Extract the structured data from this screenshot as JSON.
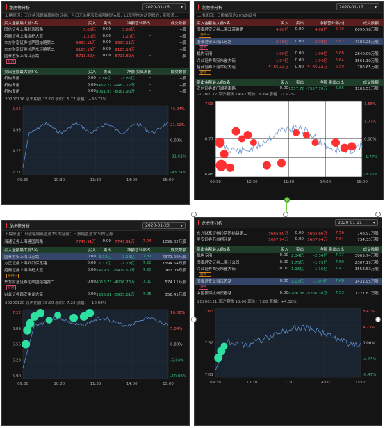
{
  "panels": [
    {
      "title": "龙虎榜分析",
      "date": "2020-01-16",
      "reason": "上榜原因：无价格涨跌幅限制的证券：当日无价格涨跌幅限制的A股，出现异常波动停牌的，新股首...",
      "buy_header": [
        "买入金额最大前5名",
        "买入",
        "卖出",
        "净额",
        "营业部占比",
        "成交数额"
      ],
      "buy_rows": [
        {
          "name": "国信证券上海北京西路",
          "buy": "5.63亿",
          "sell": "0.00",
          "net": "5.63亿",
          "pct": "--",
          "vol": "--股"
        },
        {
          "name": "招商证券上海世纪大道",
          "buy": "1.20亿",
          "sell": "0.00",
          "net": "1.20亿",
          "pct": "--",
          "vol": "--股"
        },
        {
          "name": "东方财富证券拉萨团结路第二",
          "buy": "9995.11万",
          "sell": "0.00",
          "net": "9995.11万",
          "pct": "--",
          "vol": "--股"
        },
        {
          "name": "东方财富证券拉萨东环路第二",
          "buy": "9185.14万",
          "sell": "0.00",
          "net": "9185.14万",
          "pct": "--",
          "vol": "--股"
        },
        {
          "name": "国泰君安上海江苏路",
          "buy": "8711.82万",
          "sell": "0.00",
          "net": "8711.82万",
          "pct": "--",
          "vol": "--股",
          "tag": "游资"
        }
      ],
      "sell_header": [
        "卖出金额最大前5名",
        "买入",
        "卖出",
        "净额",
        "卖出占比",
        "成交数额"
      ],
      "sell_rows": [
        {
          "name": "机构专用",
          "buy": "0.00",
          "sell": "1.86亿",
          "net": "-1.86亿",
          "pct": "--",
          "vol": "--股"
        },
        {
          "name": "机构专用",
          "buy": "0.00",
          "sell": "9462.22万",
          "net": "-9462.22万",
          "pct": "--",
          "vol": "--股"
        },
        {
          "name": "机构专用",
          "buy": "0.00",
          "sell": "8061.96万",
          "net": "-8061.96万",
          "pct": "--",
          "vol": "--股"
        }
      ],
      "chart_info": "20200116 京沪期铁 15:00  现价：5.77  涨幅：+36.72%",
      "y_left": [
        "5.65",
        "4.95",
        "4.22",
        "2.77"
      ],
      "y_right": [
        "43.24%",
        "21.61%",
        "0.00%",
        "-21.62%",
        "-43.24%"
      ],
      "x_ticks": [
        "09:30",
        "10:30",
        "11:30",
        "14:00",
        "15:00"
      ]
    },
    {
      "title": "龙虎榜分析",
      "date": "2020-01-17",
      "reason": "上榜原因：日振幅值达20%的证券",
      "buy_header": [
        "买入金额最大前5名",
        "买入",
        "卖出",
        "净额",
        "营业部占比",
        "成交数额"
      ],
      "buy_rows": [
        {
          "name": "国泰君安证券上海江苏路第一",
          "buy": "4.08亿",
          "sell": "0.00",
          "net": "4.08亿",
          "pct": "6.70",
          "vol": "6090.78万股",
          "tag": "游资一"
        },
        {
          "name": "国泰君安上海江苏路",
          "buy": "2.78亿",
          "sell": "0.00",
          "net": "2.78亿",
          "pct": "6.82",
          "vol": "4182.28万股",
          "tag": "游资",
          "sel": true
        },
        {
          "name": "机构专用",
          "buy": "1.90亿",
          "sell": "0.00",
          "net": "1.90亿",
          "pct": "6.68",
          "vol": "2840.09万股"
        },
        {
          "name": "兴业证券西安朱雀大街",
          "buy": "1.04亿",
          "sell": "0.00",
          "net": "1.04亿",
          "pct": "6.64",
          "vol": "1561.10万股"
        },
        {
          "name": "招商证券上海世纪大道",
          "buy": "5185.44万",
          "sell": "0.00",
          "net": "5185.44万",
          "pct": "6.59",
          "vol": "786.65万股",
          "tag": "游资一"
        }
      ],
      "sell_header": [
        "卖出金额最大前5名",
        "买入",
        "卖出",
        "净额",
        "卖出占比",
        "成交数额"
      ],
      "sell_rows": [
        {
          "name": "安信证券厦门湖滨南路",
          "buy": "0.00",
          "sell": "7557.70万",
          "net": "-7557.70万",
          "pct": "6.85",
          "vol": "1103.51万股"
        }
      ],
      "chart_info": "20200117 京沪期铁 14:47  现价：6.64  涨幅：-1.92%",
      "y_left": [
        "7.03",
        "6.77",
        "6.45"
      ],
      "y_right": [
        "3.55%",
        "1.77%",
        "0.00%",
        "-1.77%",
        "-3.55%"
      ],
      "x_ticks": [
        "09:30",
        "10:30",
        "11:30",
        "14:00",
        "15:00"
      ]
    },
    {
      "title": "龙虎榜分析",
      "date": "2020-01-20",
      "reason": "上榜原因：日涨幅偏离值达7%的证券；日振幅值达20%的证券",
      "top_row": {
        "name": "海通证券上海建国西路",
        "buy": "7747.91万",
        "sell": "0.00",
        "net": "7747.91万",
        "pct": "7.04",
        "vol": "1099.82万股"
      },
      "buy_header": [
        "买入金额最大前5名",
        "买入",
        "卖出",
        "净额",
        "营业部占比",
        "成交数额"
      ],
      "buy_rows": [
        {
          "name": "国泰君安上海江苏路",
          "buy": "0.00",
          "sell": "3.13亿",
          "net": "-3.13亿",
          "pct": "7.37",
          "vol": "4371.29万股",
          "sel": true
        },
        {
          "name": "方正证券上海虹口保定路",
          "buy": "0.00",
          "sell": "1.13亿",
          "net": "-1.13亿",
          "pct": "7.20",
          "vol": "1594.54万股"
        },
        {
          "name": "招商证券上海世纪大道",
          "buy": "0.00",
          "sell": "5419.50万",
          "net": "-5419.50万",
          "pct": "7.20",
          "vol": "763.09万股",
          "tag": "游资一"
        },
        {
          "name": "东方财富证券拉萨团结路第二",
          "buy": "0.00",
          "sell": "4016.76万",
          "net": "-4016.76万",
          "pct": "7.00",
          "vol": "574.11万股",
          "tag": "游资"
        },
        {
          "name": "兴业证券西安朱雀大街",
          "buy": "0.00",
          "sell": "3935.81万",
          "net": "-3935.81万",
          "pct": "7.05",
          "vol": "558.41万股"
        }
      ],
      "chart_info": "20200120 京沪期铁 15:00  现价：7.22  涨幅：+10.08%",
      "y_left": [
        "7.22",
        "6.89",
        "6.56",
        "6.23",
        "5.90"
      ],
      "y_right": [
        "10.08%",
        "5.04%",
        "0.00%",
        "-5.04%",
        "-10.08%"
      ],
      "x_ticks": [
        "09:30",
        "10:30",
        "11:30",
        "14:00",
        "15:00"
      ]
    },
    {
      "title": "龙虎榜分析",
      "date": "2020-01-21",
      "reason": "",
      "top_rows": [
        {
          "name": "东方财富证券拉萨团结路第二",
          "buy": "5665.60万",
          "sell": "0.00",
          "net": "5665.60万",
          "pct": "7.56",
          "vol": "748.97万股"
        },
        {
          "name": "平安证券苏州桐泾路",
          "buy": "5607.94万",
          "sell": "0.00",
          "net": "5607.94万",
          "pct": "7.64",
          "vol": "734.33万股"
        }
      ],
      "buy_header": [
        "卖出金额最大前5名",
        "买入",
        "卖出",
        "净额",
        "卖出占比",
        "成交数额"
      ],
      "buy_rows": [
        {
          "name": "机构专用",
          "buy": "0.00",
          "sell": "2.34亿",
          "net": "-2.34亿",
          "pct": "7.77",
          "vol": "3005.74万股"
        },
        {
          "name": "国泰君安证券上海分公司",
          "buy": "0.00",
          "sell": "1.75亿",
          "net": "-1.75亿",
          "pct": "7.60",
          "vol": "2307.19万股"
        },
        {
          "name": "兴业证券西安朱雀大街",
          "buy": "0.00",
          "sell": "1.16亿",
          "net": "-1.16亿",
          "pct": "7.47",
          "vol": "1553.53万股",
          "tag": "游资一"
        },
        {
          "name": "国泰君安上海江苏路",
          "buy": "0.00",
          "sell": "1.07亿",
          "net": "-1.07亿",
          "pct": "7.48",
          "vol": "1431.95万股",
          "tag": "游资",
          "sel": true
        },
        {
          "name": "中国银河杭州庆春路",
          "buy": "0.00",
          "sell": "9206.38万",
          "net": "-9206.38万",
          "pct": "7.53",
          "vol": "1221.87万股"
        }
      ],
      "chart_info": "20200121 京沪期铁 15:00  现价：7.88  涨幅：+4.02%",
      "y_left": [
        "7.63",
        "7.32",
        "7.01"
      ],
      "y_right": [
        "8.47%",
        "4.23%",
        "0.00%",
        "-4.23%",
        "-8.47%"
      ],
      "x_ticks": [
        "09:30",
        "10:30",
        "11:30",
        "14:00",
        "15:00"
      ]
    }
  ]
}
